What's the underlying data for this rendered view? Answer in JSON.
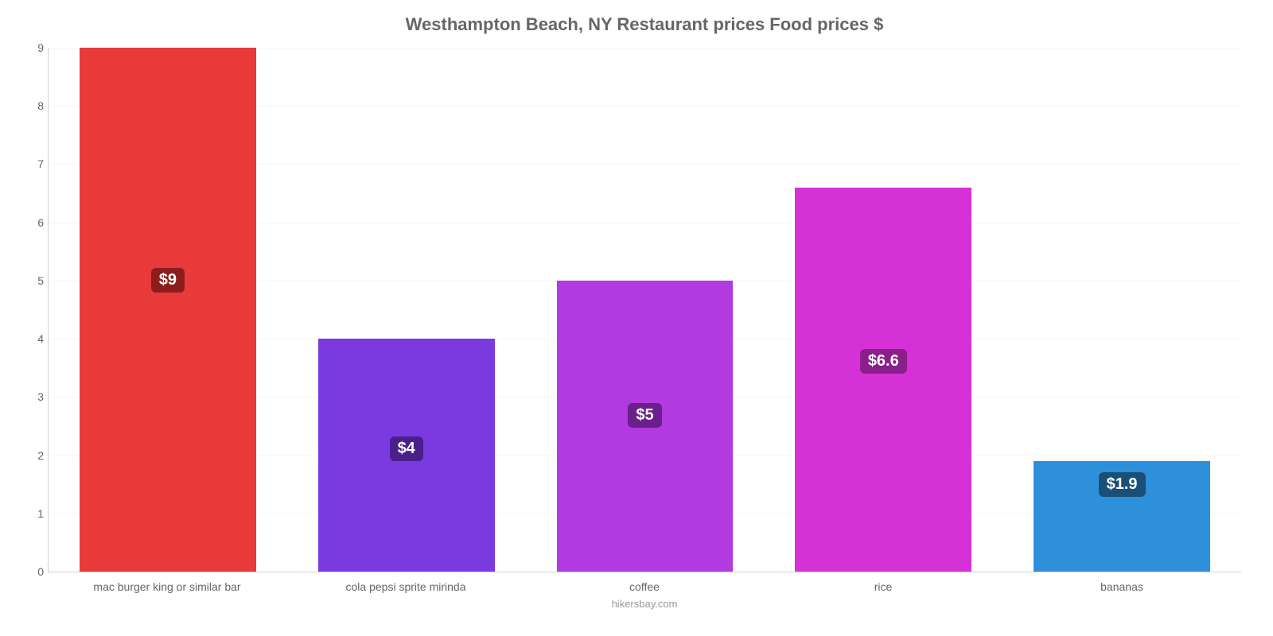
{
  "chart": {
    "type": "bar",
    "title": "Westhampton Beach, NY Restaurant prices Food prices $",
    "title_fontsize": 22,
    "title_color": "#666666",
    "background_color": "#ffffff",
    "grid_color": "#f5f5f5",
    "axis_color": "#d0d0d0",
    "tick_color": "#666666",
    "tick_fontsize": 14,
    "ylim": [
      0,
      9
    ],
    "ytick_step": 1,
    "yticks": [
      "0",
      "1",
      "2",
      "3",
      "4",
      "5",
      "6",
      "7",
      "8",
      "9"
    ],
    "bar_width_ratio": 0.74,
    "categories": [
      "mac burger king or similar bar",
      "cola pepsi sprite mirinda",
      "coffee",
      "rice",
      "bananas"
    ],
    "values": [
      9,
      4,
      5,
      6.6,
      1.9
    ],
    "value_labels": [
      "$9",
      "$4",
      "$5",
      "$6.6",
      "$1.9"
    ],
    "bar_colors": [
      "#e83a3a",
      "#7a3ae0",
      "#b13ae0",
      "#d631d6",
      "#2e8fdb"
    ],
    "badge_colors": [
      "#8b1d1d",
      "#4a1f8c",
      "#6a1f8c",
      "#8a1f8a",
      "#1a4f78"
    ],
    "badge_fontsize": 20,
    "badge_text_color": "#ffffff",
    "credit": "hikersbay.com",
    "credit_color": "#999999"
  }
}
